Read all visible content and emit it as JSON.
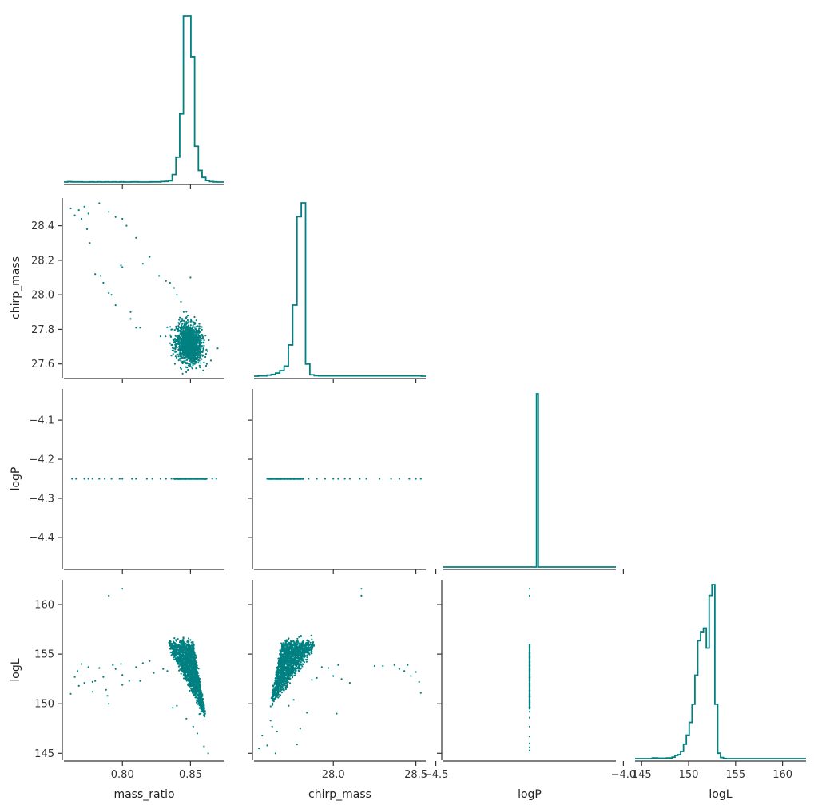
{
  "chart_data": {
    "type": "corner",
    "color": "#008080",
    "variables": [
      "mass_ratio",
      "chirp_mass",
      "logP",
      "logL"
    ],
    "axis_labels": {
      "x": [
        "mass_ratio",
        "chirp_mass",
        "logP",
        "logL"
      ],
      "y": [
        "",
        "chirp_mass",
        "logP",
        "logL"
      ]
    },
    "ranges": {
      "mass_ratio": [
        0.757,
        0.875
      ],
      "chirp_mass": [
        27.52,
        28.56
      ],
      "logP": [
        -4.48,
        -4.02
      ],
      "logL": [
        144.3,
        162.5
      ]
    },
    "ticks": {
      "mass_ratio": [
        "0.80",
        "0.85"
      ],
      "chirp_mass": [
        "27.6",
        "27.8",
        "28.0",
        "28.2",
        "28.4"
      ],
      "logP": [
        "-4.4",
        "-4.3",
        "-4.2",
        "-4.1"
      ],
      "logL": [
        "145",
        "150",
        "155",
        "160"
      ]
    },
    "x_ticks": {
      "mass_ratio": [
        "0.80",
        "0.85"
      ],
      "chirp_mass": [
        "28.0",
        "28.5"
      ],
      "logP": [
        "−4.5",
        "−4.0"
      ],
      "logL": [
        "145",
        "150",
        "155",
        "160"
      ]
    },
    "y_ticks": {
      "chirp_mass": [
        "27.6",
        "27.8",
        "28.0",
        "28.2",
        "28.4"
      ],
      "logP": [
        "−4.4",
        "−4.3",
        "−4.2",
        "−4.1"
      ],
      "logL": [
        "145",
        "150",
        "155",
        "160"
      ]
    },
    "histograms": {
      "mass_ratio": {
        "range": [
          0.757,
          0.875
        ],
        "counts": [
          0,
          2,
          1,
          1,
          1,
          0,
          0,
          1,
          0,
          1,
          0,
          1,
          0,
          1,
          0,
          1,
          0,
          0,
          1,
          1,
          0,
          0,
          0,
          1,
          1,
          1,
          3,
          4,
          8,
          45,
          150,
          410,
          1000,
          1000,
          755,
          215,
          70,
          28,
          9,
          3,
          1,
          0,
          0
        ]
      },
      "chirp_mass": {
        "range": [
          27.52,
          28.56
        ],
        "counts": [
          0,
          2,
          2,
          6,
          10,
          18,
          32,
          58,
          180,
          410,
          920,
          1000,
          70,
          8,
          3,
          2,
          2,
          2,
          2,
          2,
          2,
          2,
          2,
          2,
          2,
          2,
          2,
          2,
          2,
          2,
          2,
          2,
          2,
          2,
          2,
          2,
          2,
          2,
          2,
          0
        ]
      },
      "logP": {
        "range": [
          -4.48,
          -4.02
        ],
        "counts": [
          0,
          0,
          0,
          0,
          0,
          0,
          0,
          0,
          0,
          0,
          0,
          0,
          0,
          0,
          0,
          0,
          0,
          0,
          0,
          0,
          0,
          0,
          0,
          0,
          0,
          0,
          0,
          0,
          0,
          0,
          0,
          0,
          0,
          0,
          0,
          0,
          0,
          0,
          0,
          0,
          0,
          0,
          0,
          0,
          0,
          0,
          0,
          0,
          0,
          0,
          0,
          0,
          0,
          0,
          1000,
          0,
          0,
          0,
          0,
          0,
          0,
          0,
          0,
          0,
          0,
          0,
          0,
          0,
          0,
          0,
          0,
          0,
          0,
          0,
          0,
          0,
          0,
          0,
          0,
          0,
          0,
          0,
          0,
          0,
          0,
          0,
          0,
          0,
          0,
          0,
          0,
          0,
          0,
          0,
          0,
          0,
          0,
          0,
          0,
          0
        ]
      },
      "logL": {
        "range": [
          144.3,
          162.5
        ],
        "counts": [
          0,
          0,
          0,
          0,
          0,
          0,
          4,
          4,
          2,
          2,
          2,
          4,
          4,
          8,
          18,
          22,
          40,
          80,
          130,
          200,
          300,
          460,
          650,
          700,
          720,
          610,
          900,
          960,
          300,
          30,
          6,
          1,
          0,
          0,
          0,
          0,
          0,
          0,
          0,
          0,
          0,
          0,
          0,
          0,
          0,
          0,
          0,
          0,
          0,
          0,
          0,
          0,
          0,
          0,
          0,
          0,
          0,
          0,
          0,
          0
        ]
      }
    },
    "scatter_points": {
      "mass_ratio_chirp_mass": [
        [
          0.762,
          28.5
        ],
        [
          0.765,
          28.46
        ],
        [
          0.768,
          28.49
        ],
        [
          0.772,
          28.51
        ],
        [
          0.775,
          28.47
        ],
        [
          0.77,
          28.44
        ],
        [
          0.774,
          28.38
        ],
        [
          0.776,
          28.3
        ],
        [
          0.78,
          28.12
        ],
        [
          0.784,
          28.11
        ],
        [
          0.786,
          28.07
        ],
        [
          0.79,
          28.01
        ],
        [
          0.792,
          28.0
        ],
        [
          0.795,
          27.94
        ],
        [
          0.799,
          28.17
        ],
        [
          0.806,
          27.9
        ],
        [
          0.806,
          27.86
        ],
        [
          0.81,
          27.81
        ],
        [
          0.813,
          27.81
        ],
        [
          0.783,
          28.53
        ],
        [
          0.79,
          28.48
        ],
        [
          0.795,
          28.45
        ],
        [
          0.8,
          28.44
        ],
        [
          0.803,
          28.4
        ],
        [
          0.81,
          28.33
        ],
        [
          0.82,
          28.22
        ],
        [
          0.827,
          28.11
        ],
        [
          0.832,
          28.08
        ],
        [
          0.835,
          28.07
        ],
        [
          0.838,
          28.04
        ],
        [
          0.84,
          28.0
        ],
        [
          0.843,
          27.96
        ],
        [
          0.845,
          27.9
        ],
        [
          0.844,
          27.86
        ],
        [
          0.848,
          27.88
        ],
        [
          0.828,
          27.76
        ],
        [
          0.835,
          27.72
        ],
        [
          0.836,
          27.71
        ],
        [
          0.839,
          27.7
        ],
        [
          0.862,
          27.6
        ],
        [
          0.865,
          27.62
        ],
        [
          0.87,
          27.69
        ],
        [
          0.857,
          27.58
        ],
        [
          0.852,
          27.6
        ],
        [
          0.846,
          27.62
        ],
        [
          0.85,
          28.1
        ],
        [
          0.8,
          28.16
        ],
        [
          0.815,
          28.18
        ]
      ],
      "mass_ratio_logP": [
        [
          0.763,
          -4.25
        ],
        [
          0.766,
          -4.25
        ],
        [
          0.772,
          -4.25
        ],
        [
          0.775,
          -4.25
        ],
        [
          0.783,
          -4.25
        ],
        [
          0.787,
          -4.25
        ],
        [
          0.792,
          -4.25
        ],
        [
          0.798,
          -4.25
        ],
        [
          0.8,
          -4.25
        ],
        [
          0.807,
          -4.25
        ],
        [
          0.818,
          -4.25
        ],
        [
          0.822,
          -4.25
        ],
        [
          0.828,
          -4.25
        ],
        [
          0.832,
          -4.25
        ],
        [
          0.836,
          -4.25
        ],
        [
          0.838,
          -4.25
        ],
        [
          0.869,
          -4.25
        ],
        [
          0.866,
          -4.25
        ],
        [
          0.778,
          -4.25
        ],
        [
          0.81,
          -4.25
        ]
      ],
      "chirp_mass_logP": [
        [
          27.6,
          -4.25
        ],
        [
          27.63,
          -4.25
        ],
        [
          27.66,
          -4.25
        ],
        [
          27.85,
          -4.25
        ],
        [
          27.9,
          -4.25
        ],
        [
          27.95,
          -4.25
        ],
        [
          28.0,
          -4.25
        ],
        [
          28.03,
          -4.25
        ],
        [
          28.1,
          -4.25
        ],
        [
          28.16,
          -4.25
        ],
        [
          28.2,
          -4.25
        ],
        [
          28.28,
          -4.25
        ],
        [
          28.35,
          -4.25
        ],
        [
          28.4,
          -4.25
        ],
        [
          28.46,
          -4.25
        ],
        [
          28.5,
          -4.25
        ],
        [
          28.53,
          -4.25
        ],
        [
          28.07,
          -4.25
        ]
      ],
      "mass_ratio_logL": [
        [
          0.762,
          151
        ],
        [
          0.765,
          152.7
        ],
        [
          0.767,
          153.3
        ],
        [
          0.768,
          151.8
        ],
        [
          0.772,
          152.1
        ],
        [
          0.77,
          154
        ],
        [
          0.775,
          153.7
        ],
        [
          0.778,
          152.2
        ],
        [
          0.78,
          152.3
        ],
        [
          0.783,
          153.6
        ],
        [
          0.786,
          152.7
        ],
        [
          0.788,
          151.4
        ],
        [
          0.789,
          150.8
        ],
        [
          0.79,
          150
        ],
        [
          0.793,
          153.9
        ],
        [
          0.795,
          153.5
        ],
        [
          0.8,
          152.9
        ],
        [
          0.805,
          152.3
        ],
        [
          0.81,
          153.7
        ],
        [
          0.813,
          152.3
        ],
        [
          0.815,
          154.1
        ],
        [
          0.82,
          154.3
        ],
        [
          0.823,
          153.1
        ],
        [
          0.83,
          153.5
        ],
        [
          0.833,
          153.3
        ],
        [
          0.79,
          160.9
        ],
        [
          0.8,
          161.6
        ],
        [
          0.799,
          154
        ],
        [
          0.863,
          145
        ],
        [
          0.86,
          145.7
        ],
        [
          0.855,
          147
        ],
        [
          0.852,
          147.7
        ],
        [
          0.847,
          148.5
        ],
        [
          0.837,
          149.6
        ],
        [
          0.84,
          149.8
        ],
        [
          0.8,
          151.9
        ],
        [
          0.778,
          151.2
        ]
      ],
      "chirp_mass_logL": [
        [
          27.55,
          145.5
        ],
        [
          27.57,
          146.8
        ],
        [
          27.6,
          145.8
        ],
        [
          27.62,
          148.3
        ],
        [
          27.63,
          147.7
        ],
        [
          27.65,
          145
        ],
        [
          27.66,
          147.2
        ],
        [
          27.78,
          145.9
        ],
        [
          27.8,
          147.5
        ],
        [
          27.84,
          149.1
        ],
        [
          27.87,
          152.4
        ],
        [
          27.9,
          152.6
        ],
        [
          27.93,
          153.7
        ],
        [
          27.97,
          153.6
        ],
        [
          28.0,
          152.8
        ],
        [
          28.03,
          153.9
        ],
        [
          28.05,
          152.5
        ],
        [
          28.1,
          152.1
        ],
        [
          28.17,
          161.6
        ],
        [
          28.17,
          160.9
        ],
        [
          28.25,
          153.8
        ],
        [
          28.3,
          153.8
        ],
        [
          28.37,
          153.9
        ],
        [
          28.43,
          153.3
        ],
        [
          28.45,
          153.9
        ],
        [
          28.5,
          153.2
        ],
        [
          28.52,
          152.2
        ],
        [
          28.53,
          151.1
        ],
        [
          28.47,
          152.8
        ],
        [
          28.4,
          153.5
        ],
        [
          28.02,
          149
        ],
        [
          27.76,
          150.4
        ],
        [
          27.73,
          149.8
        ]
      ],
      "logP_logL": [
        [
          -4.25,
          161.6
        ],
        [
          -4.25,
          160.9
        ],
        [
          -4.25,
          146
        ],
        [
          -4.25,
          145.6
        ],
        [
          -4.25,
          145.3
        ],
        [
          -4.25,
          146.7
        ],
        [
          -4.25,
          147.7
        ],
        [
          -4.25,
          148.6
        ],
        [
          -4.25,
          149.2
        ]
      ]
    },
    "scatter_clusters": {
      "mass_ratio_chirp_mass": {
        "type": "ellipse",
        "center": [
          0.849,
          27.72
        ],
        "spread": [
          0.0046,
          0.055
        ],
        "count": 1500,
        "corr": -0.15
      },
      "mass_ratio_logP": {
        "type": "segment",
        "from": [
          0.838,
          -4.25
        ],
        "to": [
          0.862,
          -4.25
        ],
        "count": 300
      },
      "chirp_mass_logP": {
        "type": "segment",
        "from": [
          27.6,
          -4.25
        ],
        "to": [
          27.82,
          -4.25
        ],
        "count": 300
      },
      "mass_ratio_logL": {
        "type": "fan",
        "apex": [
          0.861,
          148.8
        ],
        "top": [
          0.843,
          156.0
        ],
        "spread_x": 0.009,
        "count": 1600
      },
      "chirp_mass_logL": {
        "type": "fan",
        "apex": [
          27.62,
          150.0
        ],
        "top": [
          27.79,
          156.0
        ],
        "spread_x": 0.1,
        "count": 1600
      },
      "logP_logL": {
        "type": "segment",
        "from": [
          -4.25,
          149.5
        ],
        "to": [
          -4.25,
          156.0
        ],
        "count": 300
      }
    }
  }
}
